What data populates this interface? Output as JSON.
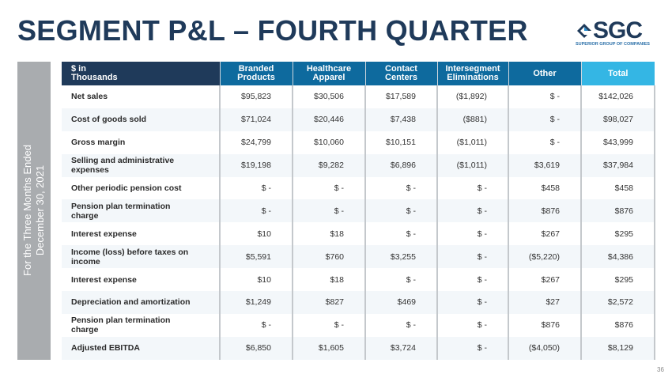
{
  "title": "SEGMENT P&L – FOURTH QUARTER",
  "logo": {
    "name": "SGC",
    "subtitle": "SUPERIOR GROUP OF COMPANIES"
  },
  "side_label": {
    "line1": "For the Three Months Ended",
    "line2": "December 30, 2021"
  },
  "table": {
    "header_label_line1": "$ in",
    "header_label_line2": "Thousands",
    "columns": [
      {
        "line1": "Branded",
        "line2": "Products"
      },
      {
        "line1": "Healthcare",
        "line2": "Apparel"
      },
      {
        "line1": "Contact",
        "line2": "Centers"
      },
      {
        "line1": "Intersegment",
        "line2": "Eliminations"
      },
      {
        "line1": "Other",
        "line2": ""
      },
      {
        "line1": "Total",
        "line2": ""
      }
    ],
    "rows": [
      {
        "label": "Net sales",
        "values": [
          "$95,823",
          "$30,506",
          "$17,589",
          "($1,892)",
          "$ -",
          "$142,026"
        ]
      },
      {
        "label": "Cost of goods sold",
        "values": [
          "$71,024",
          "$20,446",
          "$7,438",
          "($881)",
          "$ -",
          "$98,027"
        ]
      },
      {
        "label": "Gross margin",
        "values": [
          "$24,799",
          "$10,060",
          "$10,151",
          "($1,011)",
          "$ -",
          "$43,999"
        ]
      },
      {
        "label": "Selling and administrative expenses",
        "values": [
          "$19,198",
          "$9,282",
          "$6,896",
          "($1,011)",
          "$3,619",
          "$37,984"
        ]
      },
      {
        "label": "Other periodic pension cost",
        "values": [
          "$ -",
          "$ -",
          "$ -",
          "$ -",
          "$458",
          "$458"
        ]
      },
      {
        "label": "Pension plan termination charge",
        "values": [
          "$ -",
          "$ -",
          "$ -",
          "$ -",
          "$876",
          "$876"
        ]
      },
      {
        "label": "Interest expense",
        "values": [
          "$10",
          "$18",
          "$ -",
          "$ -",
          "$267",
          "$295"
        ]
      },
      {
        "label": "Income (loss) before taxes on income",
        "values": [
          "$5,591",
          "$760",
          "$3,255",
          "$ -",
          "($5,220)",
          "$4,386"
        ]
      },
      {
        "label": "Interest expense",
        "values": [
          "$10",
          "$18",
          "$ -",
          "$ -",
          "$267",
          "$295"
        ]
      },
      {
        "label": "Depreciation and amortization",
        "values": [
          "$1,249",
          "$827",
          "$469",
          "$ -",
          "$27",
          "$2,572"
        ]
      },
      {
        "label": "Pension plan termination charge",
        "values": [
          "$ -",
          "$ -",
          "$ -",
          "$ -",
          "$876",
          "$876"
        ]
      },
      {
        "label": "Adjusted EBITDA",
        "values": [
          "$6,850",
          "$1,605",
          "$3,724",
          "$ -",
          "($4,050)",
          "$8,129"
        ]
      }
    ]
  },
  "page_number": "36"
}
